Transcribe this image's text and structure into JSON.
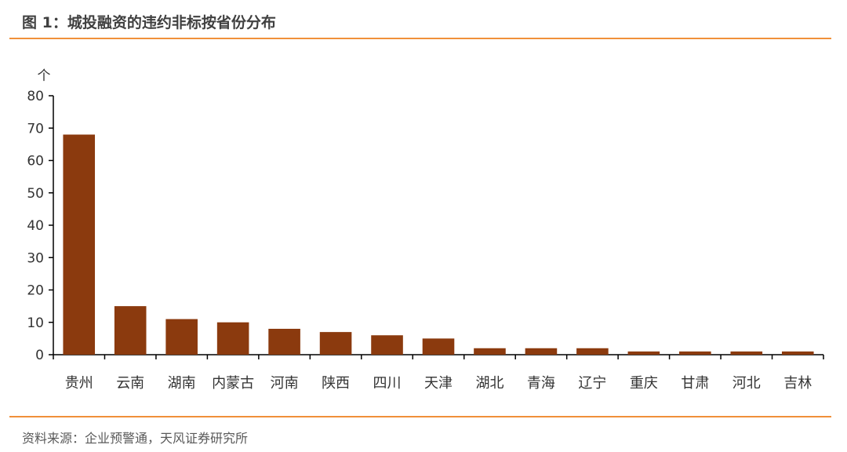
{
  "header": {
    "title": "图 1：城投融资的违约非标按省份分布"
  },
  "footer": {
    "source": "资料来源：企业预警通，天风证券研究所"
  },
  "colors": {
    "accent_rule": "#f0903a",
    "bar": "#8b3a0e",
    "axis": "#000000"
  },
  "chart_data": {
    "type": "bar",
    "title": "",
    "xlabel": "",
    "ylabel": "个",
    "ylim": [
      0,
      80
    ],
    "yticks": [
      0,
      10,
      20,
      30,
      40,
      50,
      60,
      70,
      80
    ],
    "grid": false,
    "categories": [
      "贵州",
      "云南",
      "湖南",
      "内蒙古",
      "河南",
      "陕西",
      "四川",
      "天津",
      "湖北",
      "青海",
      "辽宁",
      "重庆",
      "甘肃",
      "河北",
      "吉林"
    ],
    "values": [
      68,
      15,
      11,
      10,
      8,
      7,
      6,
      5,
      2,
      2,
      2,
      1,
      1,
      1,
      1
    ]
  }
}
